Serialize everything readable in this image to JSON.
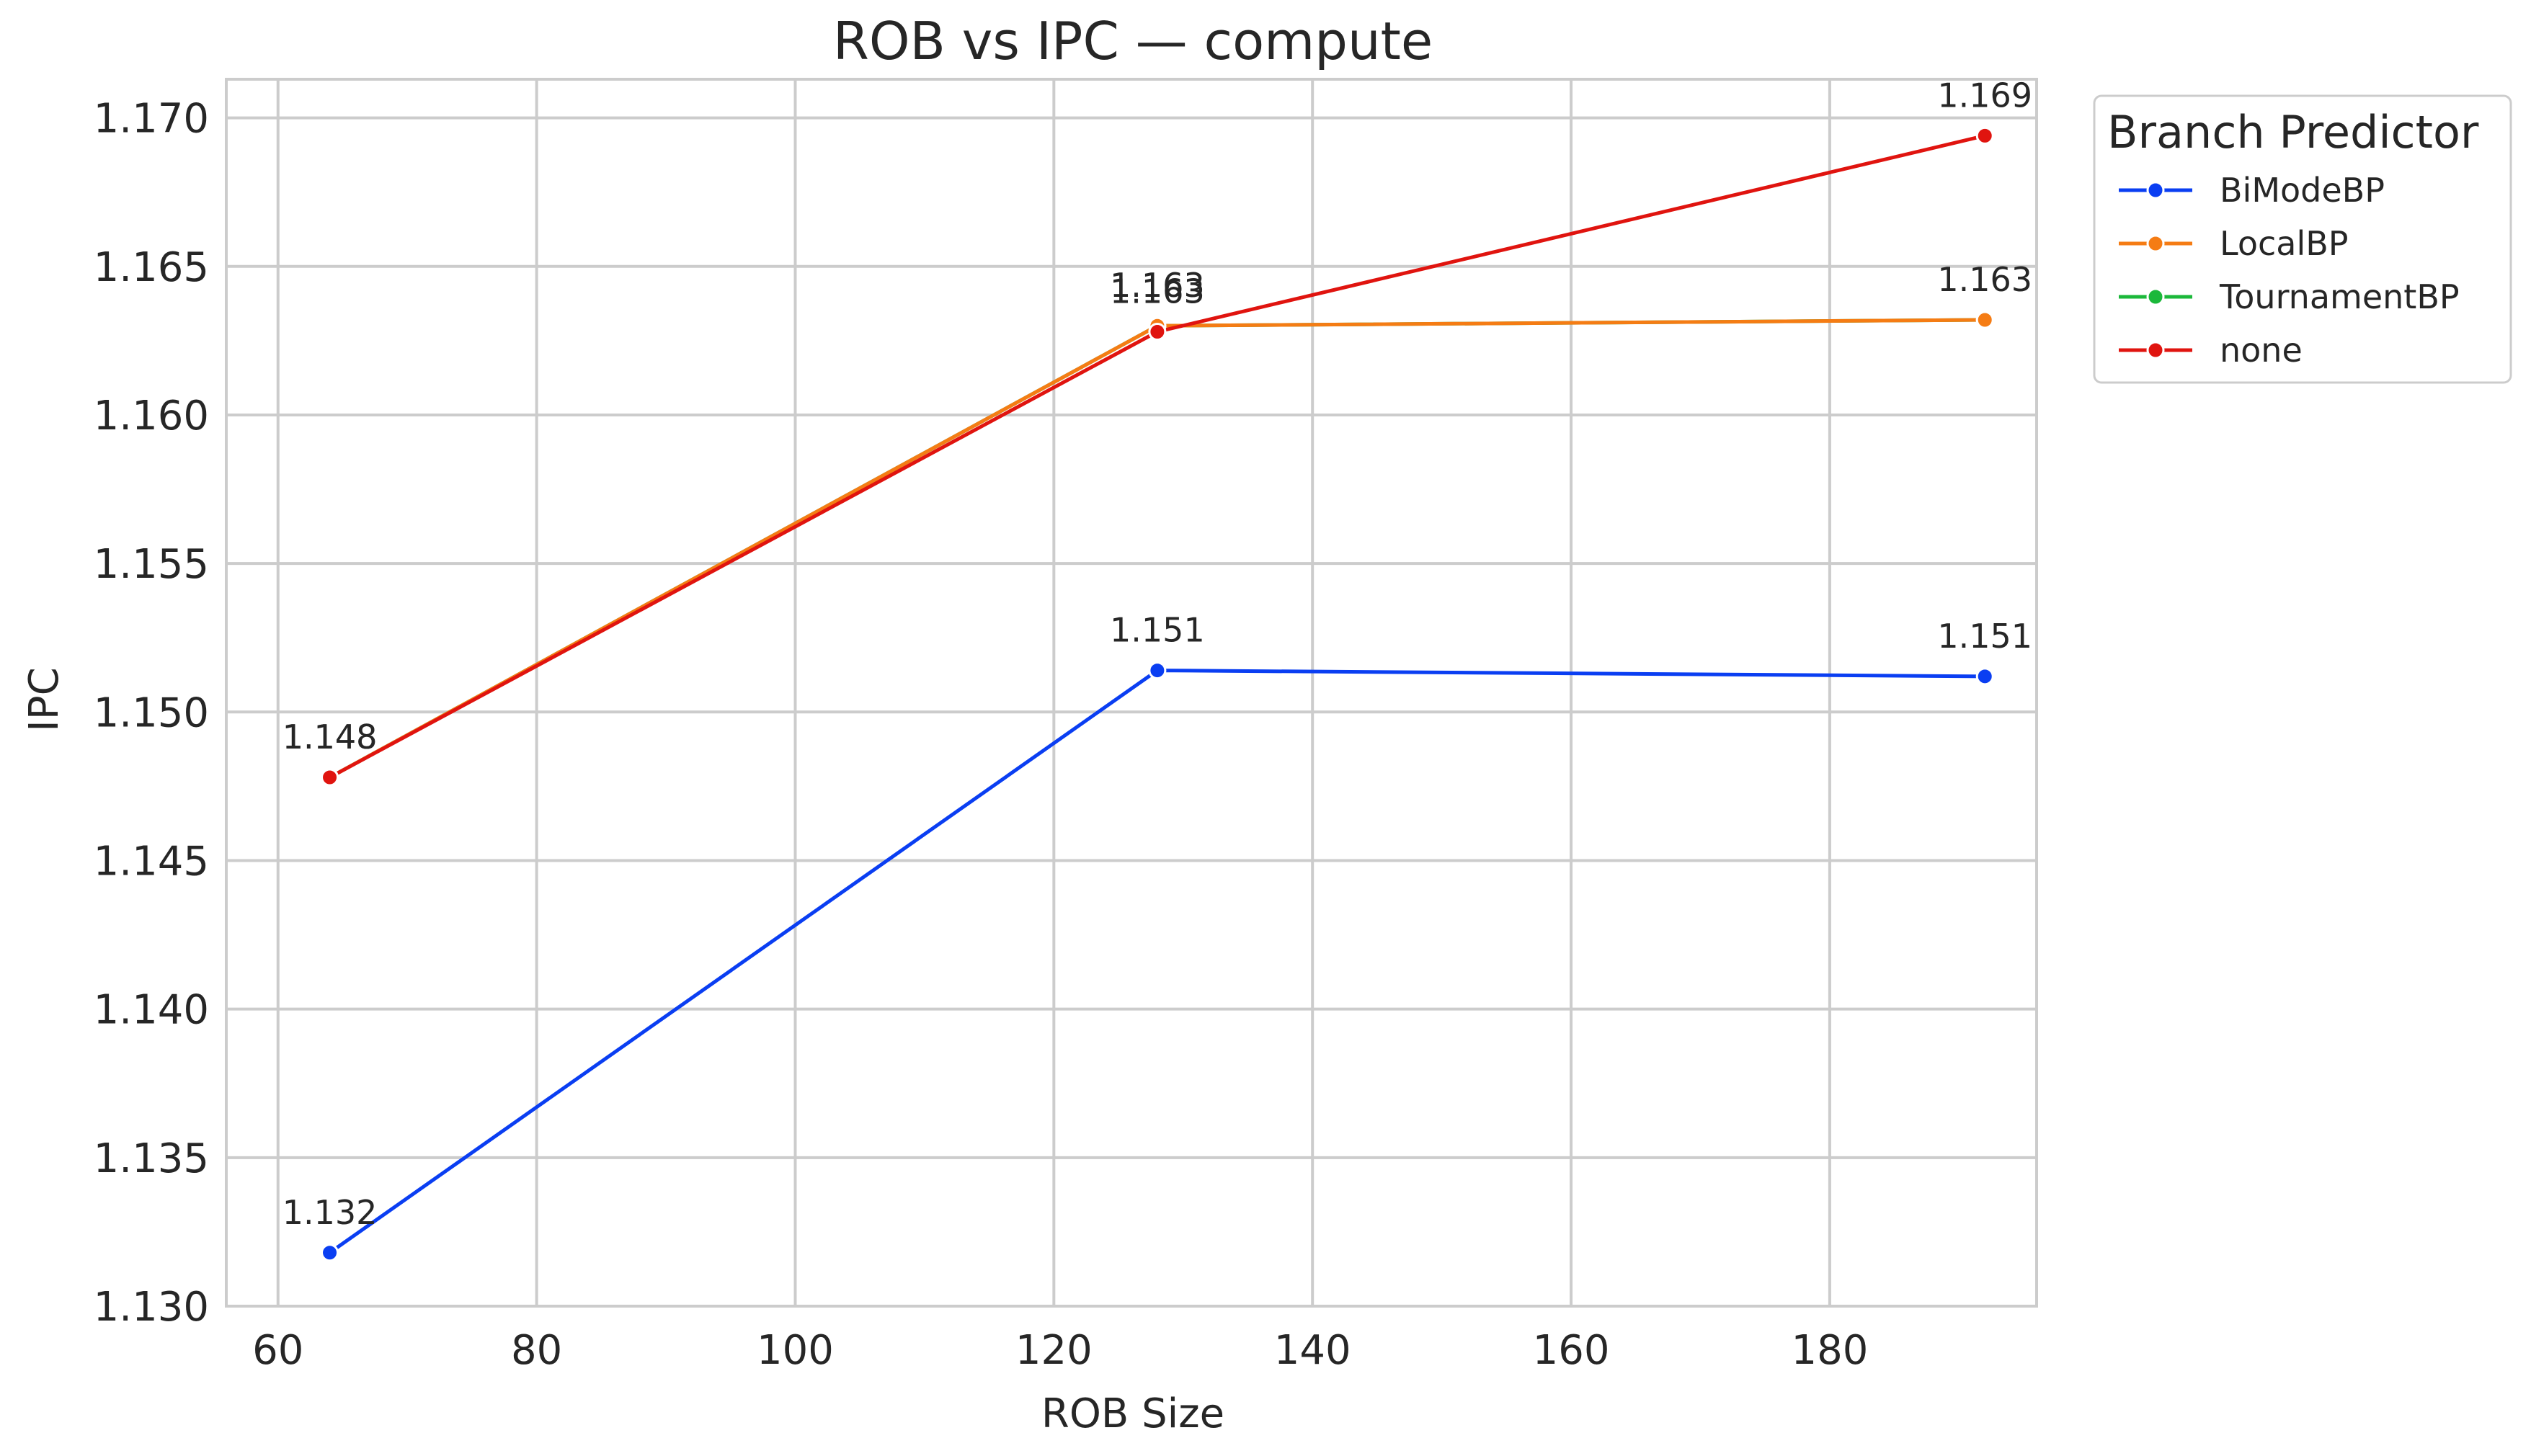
{
  "chart_data": {
    "type": "line",
    "title": "ROB vs IPC — compute",
    "xlabel": "ROB Size",
    "ylabel": "IPC",
    "xlim": [
      56,
      196
    ],
    "ylim": [
      1.13,
      1.1713
    ],
    "xticks": [
      "60",
      "80",
      "100",
      "120",
      "140",
      "160",
      "180"
    ],
    "yticks": [
      "1.130",
      "1.135",
      "1.140",
      "1.145",
      "1.150",
      "1.155",
      "1.160",
      "1.165",
      "1.170"
    ],
    "grid": true,
    "legend": {
      "title": "Branch Predictor",
      "placement": "outside-upper-right"
    },
    "x": [
      64,
      128,
      192
    ],
    "series": [
      {
        "name": "BiModeBP",
        "color": "#0a3ef2",
        "values": [
          1.1318,
          1.1514,
          1.1512
        ],
        "labels": [
          "1.132",
          "1.151",
          "1.151"
        ]
      },
      {
        "name": "LocalBP",
        "color": "#f57c14",
        "values": [
          1.1478,
          1.163,
          1.1632
        ],
        "labels": [
          "1.148",
          "1.163",
          "1.163"
        ]
      },
      {
        "name": "TournamentBP",
        "color": "#1bb83a",
        "values": [
          1.1478,
          1.163,
          1.1632
        ],
        "labels": [
          "",
          "",
          ""
        ]
      },
      {
        "name": "none",
        "color": "#e0140f",
        "values": [
          1.1478,
          1.1628,
          1.1694
        ],
        "labels": [
          "1.148",
          "1.163",
          "1.169"
        ]
      }
    ]
  }
}
